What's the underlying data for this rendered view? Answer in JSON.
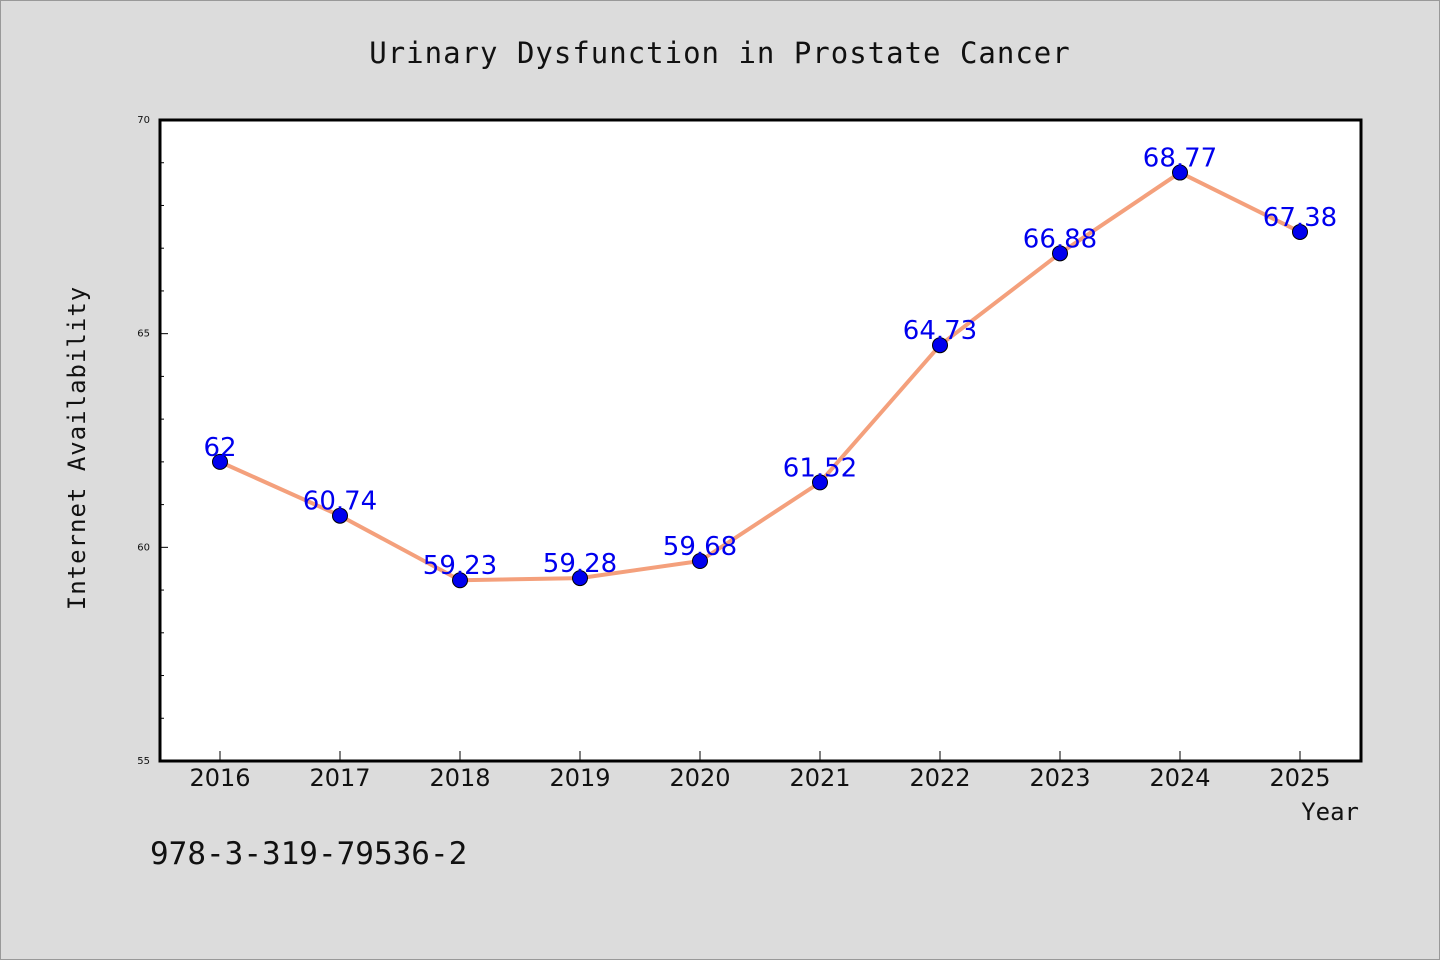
{
  "chart_data": {
    "type": "line",
    "title": "Urinary Dysfunction in Prostate Cancer",
    "xlabel": "Year",
    "ylabel": "Internet Availability",
    "categories": [
      "2016",
      "2017",
      "2018",
      "2019",
      "2020",
      "2021",
      "2022",
      "2023",
      "2024",
      "2025"
    ],
    "series": [
      {
        "values": [
          62,
          60.74,
          59.23,
          59.28,
          59.68,
          61.52,
          64.73,
          66.88,
          68.77,
          67.38
        ],
        "labels": [
          "62",
          "60.74",
          "59.23",
          "59.28",
          "59.68",
          "61.52",
          "64.73",
          "66.88",
          "68.77",
          "67.38"
        ]
      }
    ],
    "ylim": [
      55,
      70
    ],
    "yticks": [
      "55",
      "60",
      "65",
      "70"
    ],
    "grid": false,
    "line_color": "#f4a07c",
    "marker_color": "#0000ee"
  },
  "footer_text": "978-3-319-79536-2"
}
